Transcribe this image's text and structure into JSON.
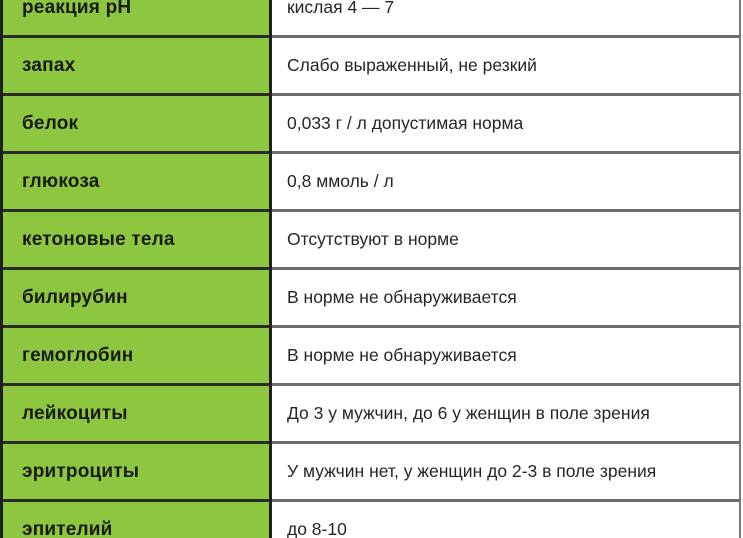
{
  "colors": {
    "label_cell_green": "#8dc63f",
    "dark_border": "#1f1f1f",
    "gray_border": "#6d6d6d",
    "label_text": "#1a1a18",
    "value_text": "#262626"
  },
  "table": {
    "description_rows_visible": 10,
    "rows": [
      {
        "label": "реакция pH",
        "value": "кислая 4 — 7"
      },
      {
        "label": "запах",
        "value": "Слабо выраженный, не резкий"
      },
      {
        "label": "белок",
        "value": "0,033 г / л допустимая норма"
      },
      {
        "label": "глюкоза",
        "value": "0,8 ммоль / л"
      },
      {
        "label": "кетоновые тела",
        "value": "Отсутствуют в норме"
      },
      {
        "label": "билирубин",
        "value": "В норме не обнаруживается"
      },
      {
        "label": "гемоглобин",
        "value": "В норме не обнаруживается"
      },
      {
        "label": "лейкоциты",
        "value": "До 3 у мужчин, до 6 у женщин в поле зрения"
      },
      {
        "label": "эритроциты",
        "value": "У мужчин нет, у женщин до 2-3 в поле зрения"
      },
      {
        "label": "эпителий",
        "value": "до 8-10"
      }
    ]
  }
}
